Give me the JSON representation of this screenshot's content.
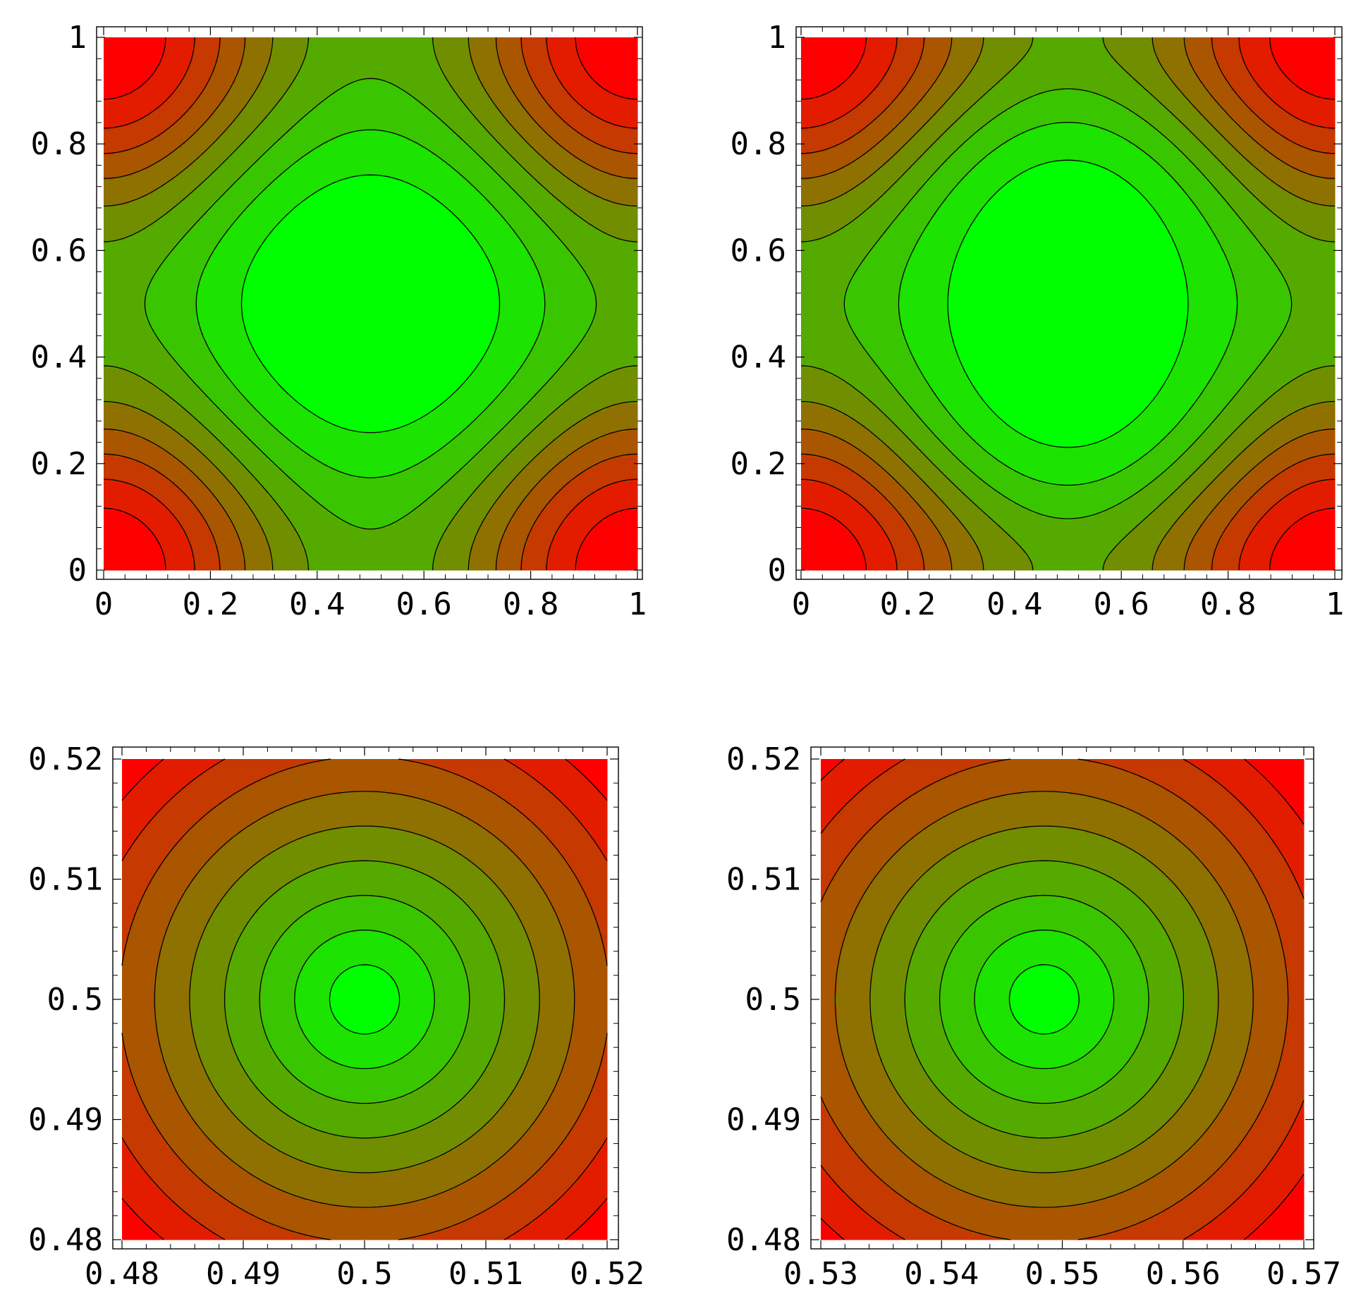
{
  "chart_data": [
    {
      "type": "heatmap",
      "subtype": "contour",
      "title": "",
      "xlabel": "",
      "ylabel": "",
      "xlim": [
        0,
        1
      ],
      "ylim": [
        0,
        1
      ],
      "xticks": [
        "0",
        "0.2",
        "0.4",
        "0.6",
        "0.8",
        "1"
      ],
      "yticks": [
        "0",
        "0.2",
        "0.4",
        "0.6",
        "0.8",
        "1"
      ],
      "xtick_values": [
        0,
        0.2,
        0.4,
        0.6,
        0.8,
        1
      ],
      "ytick_values": [
        0,
        0.2,
        0.4,
        0.6,
        0.8,
        1
      ],
      "field": {
        "kind": "periodic",
        "minima": [
          [
            0.5,
            0.5
          ]
        ],
        "maxima_at_corners": true,
        "asymmetry": 0
      },
      "levels": 10,
      "colormap": {
        "low": "#00ff00",
        "high": "#ff0000"
      },
      "grid": false
    },
    {
      "type": "heatmap",
      "subtype": "contour",
      "title": "",
      "xlabel": "",
      "ylabel": "",
      "xlim": [
        0,
        1
      ],
      "ylim": [
        0,
        1
      ],
      "xticks": [
        "0",
        "0.2",
        "0.4",
        "0.6",
        "0.8",
        "1"
      ],
      "yticks": [
        "0",
        "0.2",
        "0.4",
        "0.6",
        "0.8",
        "1"
      ],
      "xtick_values": [
        0,
        0.2,
        0.4,
        0.6,
        0.8,
        1
      ],
      "ytick_values": [
        0,
        0.2,
        0.4,
        0.6,
        0.8,
        1
      ],
      "field": {
        "kind": "periodic",
        "minima": [
          [
            0.55,
            0.5
          ]
        ],
        "maxima_at_corners": true,
        "asymmetry": 0.18
      },
      "levels": 10,
      "colormap": {
        "low": "#00ff00",
        "high": "#ff0000"
      },
      "grid": false
    },
    {
      "type": "heatmap",
      "subtype": "contour",
      "title": "",
      "xlabel": "",
      "ylabel": "",
      "xlim": [
        0.48,
        0.52
      ],
      "ylim": [
        0.48,
        0.52
      ],
      "xticks": [
        "0.48",
        "0.49",
        "0.5",
        "0.51",
        "0.52"
      ],
      "yticks": [
        "0.48",
        "0.49",
        "0.5",
        "0.51",
        "0.52"
      ],
      "xtick_values": [
        0.48,
        0.49,
        0.5,
        0.51,
        0.52
      ],
      "ytick_values": [
        0.48,
        0.49,
        0.5,
        0.51,
        0.52
      ],
      "field": {
        "kind": "radial",
        "center": [
          0.5,
          0.5
        ]
      },
      "levels": 10,
      "colormap": {
        "low": "#00ff00",
        "high": "#ff0000"
      },
      "grid": false
    },
    {
      "type": "heatmap",
      "subtype": "contour",
      "title": "",
      "xlabel": "",
      "ylabel": "",
      "xlim": [
        0.53,
        0.57
      ],
      "ylim": [
        0.48,
        0.52
      ],
      "xticks": [
        "0.53",
        "0.54",
        "0.55",
        "0.56",
        "0.57"
      ],
      "yticks": [
        "0.48",
        "0.49",
        "0.5",
        "0.51",
        "0.52"
      ],
      "xtick_values": [
        0.53,
        0.54,
        0.55,
        0.56,
        0.57
      ],
      "ytick_values": [
        0.48,
        0.49,
        0.5,
        0.51,
        0.52
      ],
      "field": {
        "kind": "radial",
        "center": [
          0.5485,
          0.5
        ]
      },
      "levels": 10,
      "colormap": {
        "low": "#00ff00",
        "high": "#ff0000"
      },
      "grid": false
    }
  ]
}
